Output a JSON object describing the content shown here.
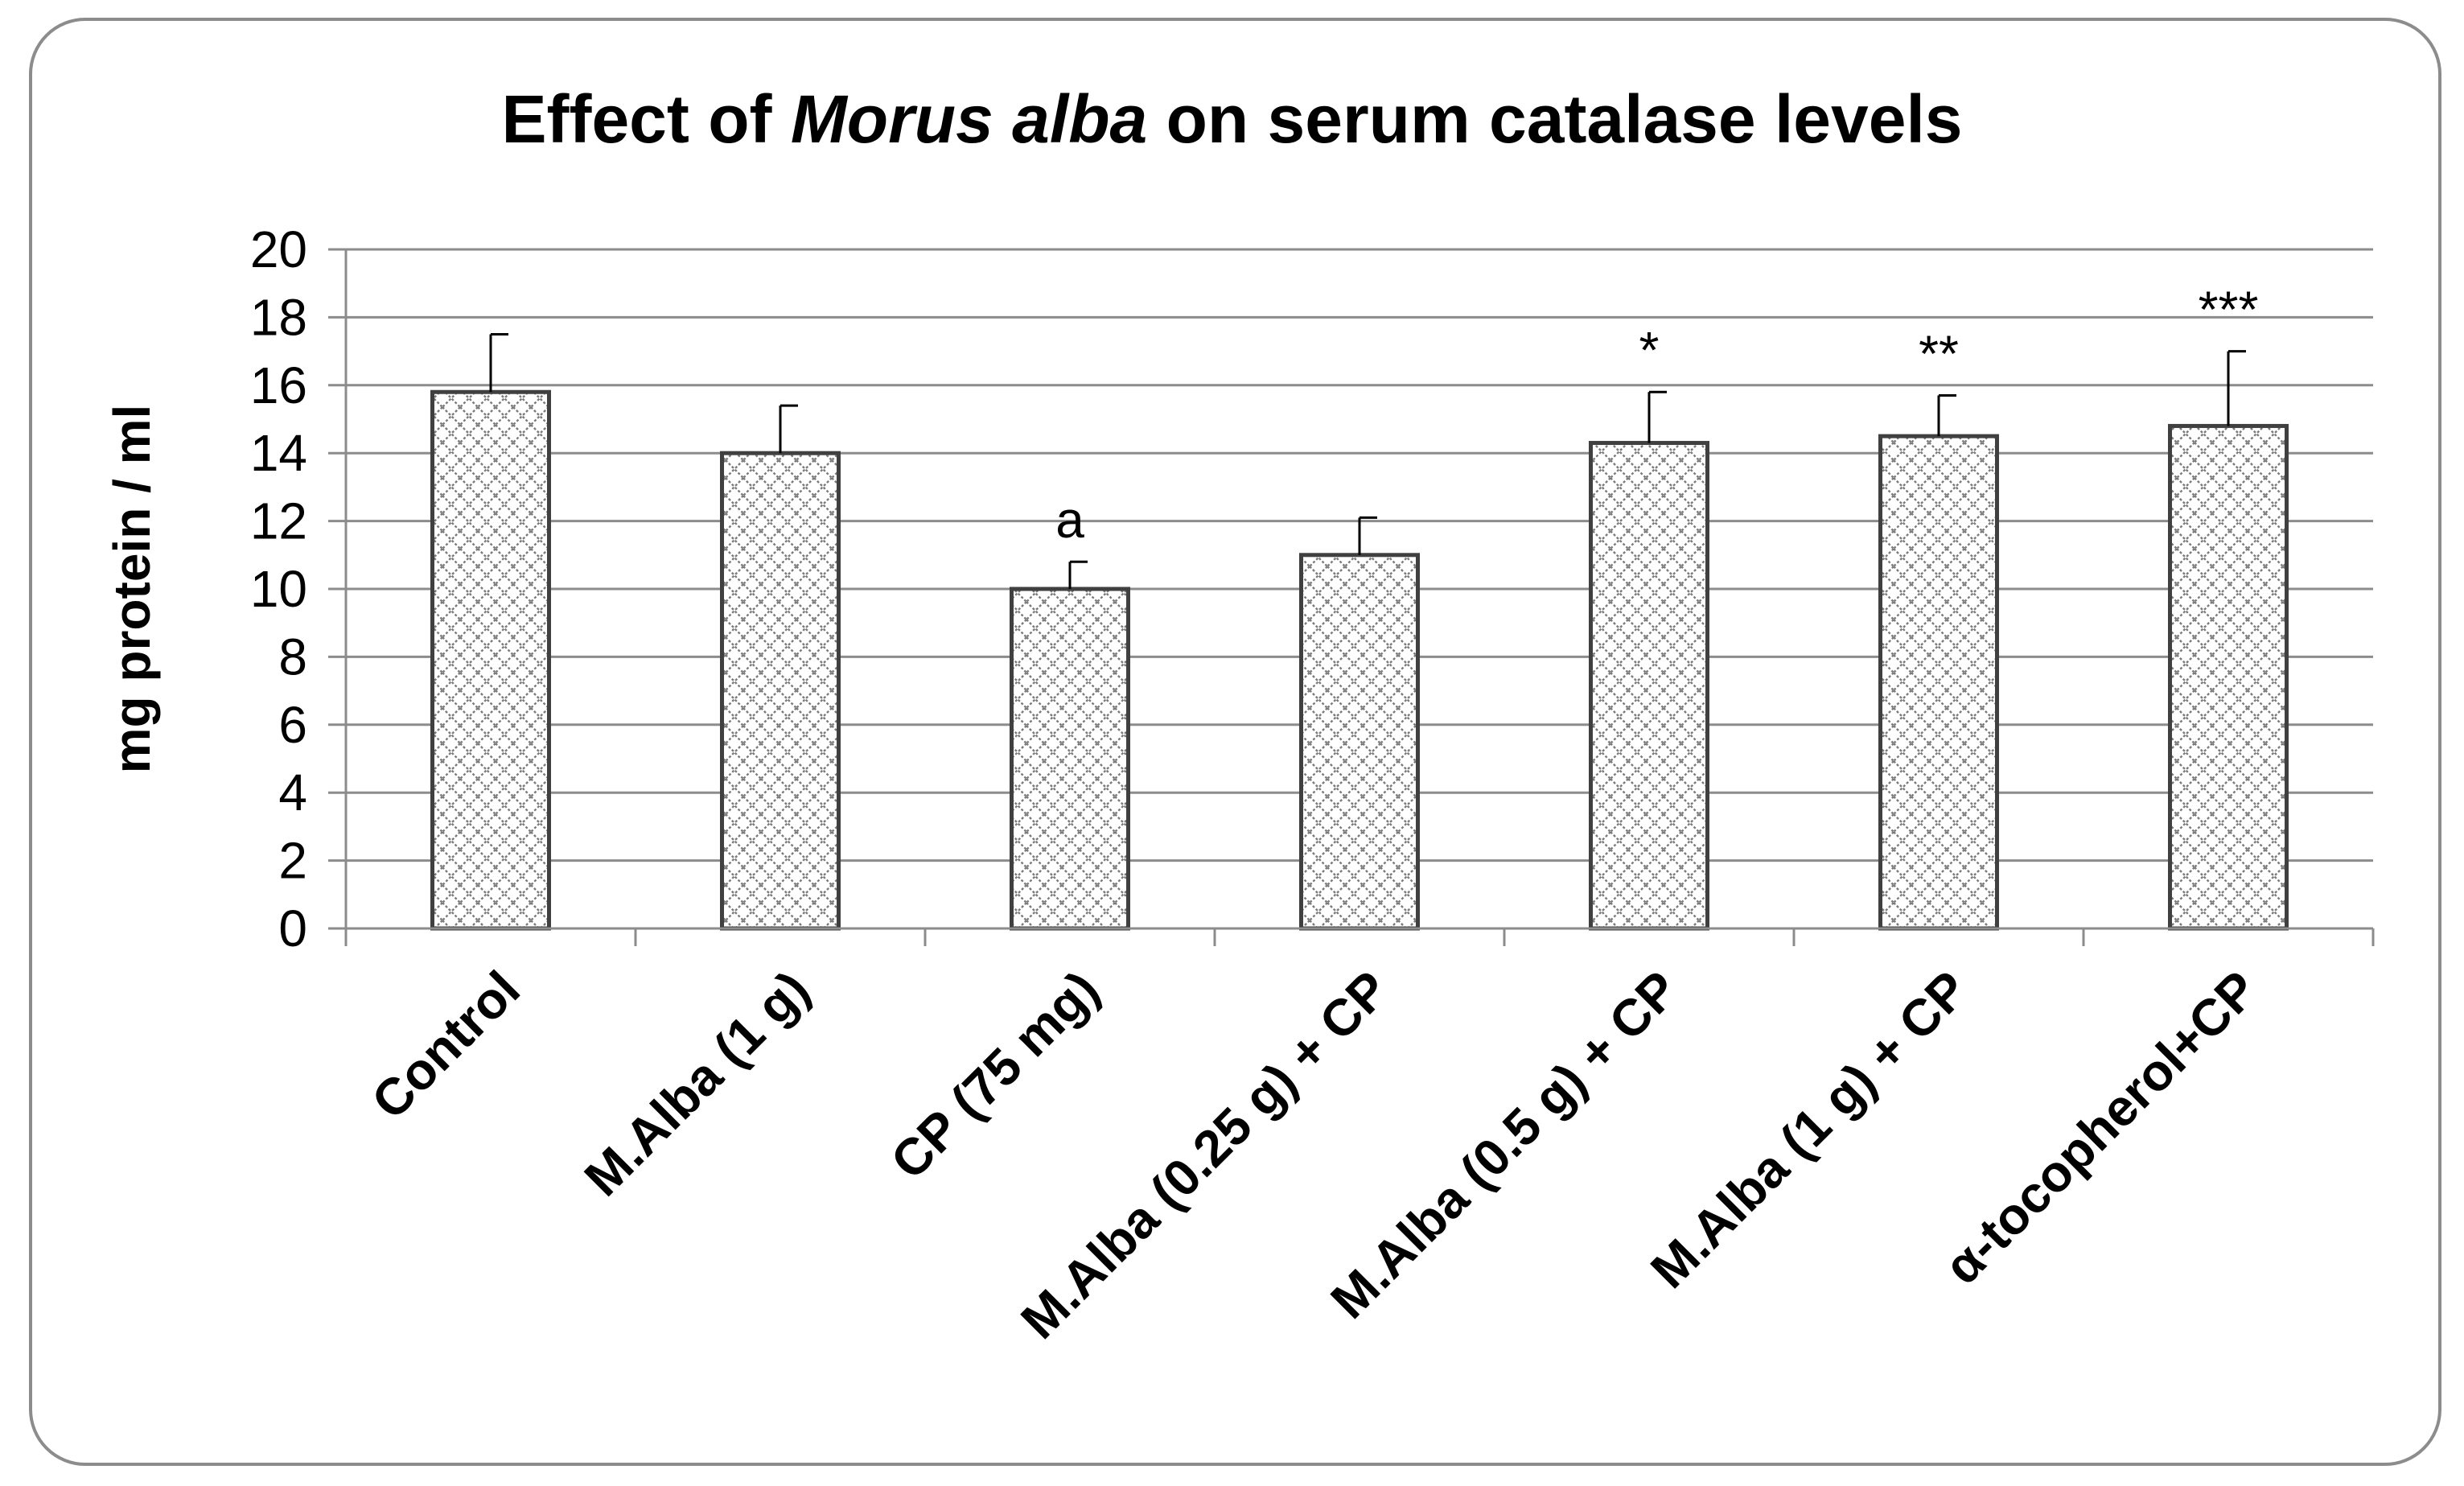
{
  "chart_data": {
    "type": "bar",
    "title_prefix": "Effect of ",
    "title_italic": "Morus alba",
    "title_suffix": " on serum catalase levels",
    "ylabel": "mg protein / ml",
    "xlabel": "",
    "ylim": [
      0,
      20
    ],
    "yticks": [
      "0",
      "2",
      "4",
      "6",
      "8",
      "10",
      "12",
      "14",
      "16",
      "18",
      "20"
    ],
    "categories": [
      "Control",
      "M.Alba (1 g)",
      "CP (75 mg)",
      "M.Alba (0.25 g) + CP",
      "M.Alba (0.5 g) + CP",
      "M.Alba (1 g) + CP",
      "α-tocopherol+CP"
    ],
    "values": [
      15.8,
      14.0,
      10.0,
      11.0,
      14.3,
      14.5,
      14.8
    ],
    "errors": [
      1.7,
      1.4,
      0.8,
      1.1,
      1.5,
      1.2,
      2.2
    ],
    "annotations": [
      "",
      "",
      "a",
      "",
      "*",
      "**",
      "***"
    ],
    "grid": true,
    "bar_fill": "crosshatch",
    "bar_color": "#404040",
    "grid_color": "#8c8c8c"
  }
}
